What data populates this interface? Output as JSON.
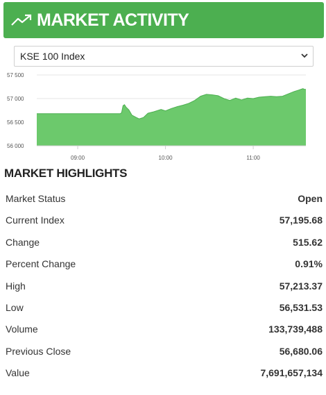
{
  "header": {
    "title": "MARKET ACTIVITY",
    "icon": "trending-up-icon"
  },
  "index_select": {
    "selected": "KSE 100 Index"
  },
  "chart_data": {
    "type": "area",
    "color": "#6cc96c",
    "ylim": [
      56000,
      57500
    ],
    "yticks": [
      "57 500",
      "57 000",
      "56 500",
      "56 000"
    ],
    "ytick_values": [
      57500,
      57000,
      56500,
      56000
    ],
    "xticks": [
      "09:00",
      "10:00",
      "11:00"
    ],
    "xtick_hours": [
      9,
      10,
      11
    ],
    "xlim": [
      "08:32",
      "11:36"
    ],
    "series": [
      {
        "x": [
          "08:32",
          "09:29",
          "09:30",
          "09:31",
          "09:32",
          "09:33",
          "09:35",
          "09:37",
          "09:40",
          "09:42",
          "09:45",
          "09:48",
          "09:52",
          "09:57",
          "10:00",
          "10:04",
          "10:08",
          "10:12",
          "10:16",
          "10:20",
          "10:24",
          "10:28",
          "10:32",
          "10:36",
          "10:40",
          "10:44",
          "10:48",
          "10:52",
          "10:56",
          "11:00",
          "11:04",
          "11:08",
          "11:12",
          "11:16",
          "11:20",
          "11:24",
          "11:28",
          "11:31",
          "11:33",
          "11:34",
          "11:35",
          "11:36"
        ],
        "values": [
          56680,
          56680,
          56700,
          56850,
          56870,
          56820,
          56760,
          56650,
          56600,
          56570,
          56600,
          56690,
          56720,
          56770,
          56740,
          56790,
          56830,
          56860,
          56900,
          56960,
          57050,
          57090,
          57080,
          57060,
          57000,
          56960,
          57010,
          56970,
          57010,
          57000,
          57030,
          57040,
          57050,
          57040,
          57050,
          57100,
          57150,
          57180,
          57200,
          57210,
          57195,
          57195
        ]
      }
    ]
  },
  "highlights": {
    "title": "MARKET HIGHLIGHTS",
    "rows": [
      {
        "label": "Market Status",
        "value": "Open"
      },
      {
        "label": "Current Index",
        "value": "57,195.68"
      },
      {
        "label": "Change",
        "value": "515.62"
      },
      {
        "label": "Percent Change",
        "value": "0.91%"
      },
      {
        "label": "High",
        "value": "57,213.37"
      },
      {
        "label": "Low",
        "value": "56,531.53"
      },
      {
        "label": "Volume",
        "value": "133,739,488"
      },
      {
        "label": "Previous Close",
        "value": "56,680.06"
      },
      {
        "label": "Value",
        "value": "7,691,657,134"
      }
    ]
  }
}
